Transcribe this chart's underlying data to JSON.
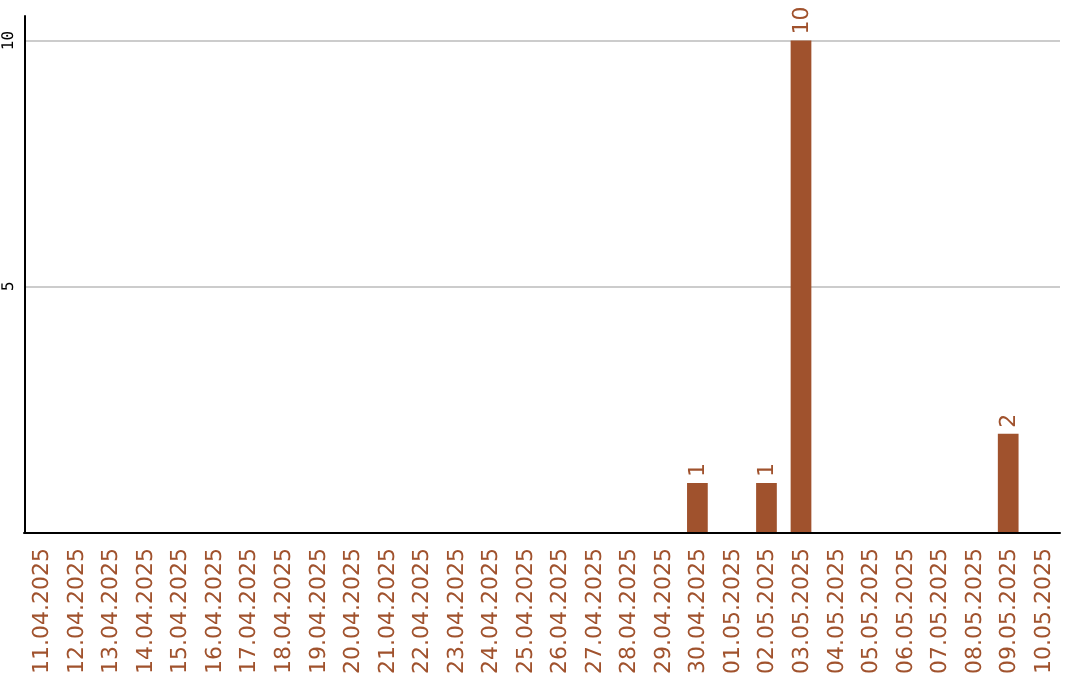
{
  "chart_data": {
    "type": "bar",
    "categories": [
      "11.04.2025",
      "12.04.2025",
      "13.04.2025",
      "14.04.2025",
      "15.04.2025",
      "16.04.2025",
      "17.04.2025",
      "18.04.2025",
      "19.04.2025",
      "20.04.2025",
      "21.04.2025",
      "22.04.2025",
      "23.04.2025",
      "24.04.2025",
      "25.04.2025",
      "26.04.2025",
      "27.04.2025",
      "28.04.2025",
      "29.04.2025",
      "30.04.2025",
      "01.05.2025",
      "02.05.2025",
      "03.05.2025",
      "04.05.2025",
      "05.05.2025",
      "06.05.2025",
      "07.05.2025",
      "08.05.2025",
      "09.05.2025",
      "10.05.2025"
    ],
    "values": [
      0,
      0,
      0,
      0,
      0,
      0,
      0,
      0,
      0,
      0,
      0,
      0,
      0,
      0,
      0,
      0,
      0,
      0,
      0,
      1,
      0,
      1,
      10,
      0,
      0,
      0,
      0,
      0,
      2,
      0
    ],
    "value_labels": [
      null,
      null,
      null,
      null,
      null,
      null,
      null,
      null,
      null,
      null,
      null,
      null,
      null,
      null,
      null,
      null,
      null,
      null,
      null,
      "1",
      null,
      "1",
      "10",
      null,
      null,
      null,
      null,
      null,
      "2",
      null
    ],
    "color": "#a0522d",
    "ylim": [
      0,
      10.5
    ],
    "yticks": [
      5,
      10
    ],
    "grid": "y"
  }
}
